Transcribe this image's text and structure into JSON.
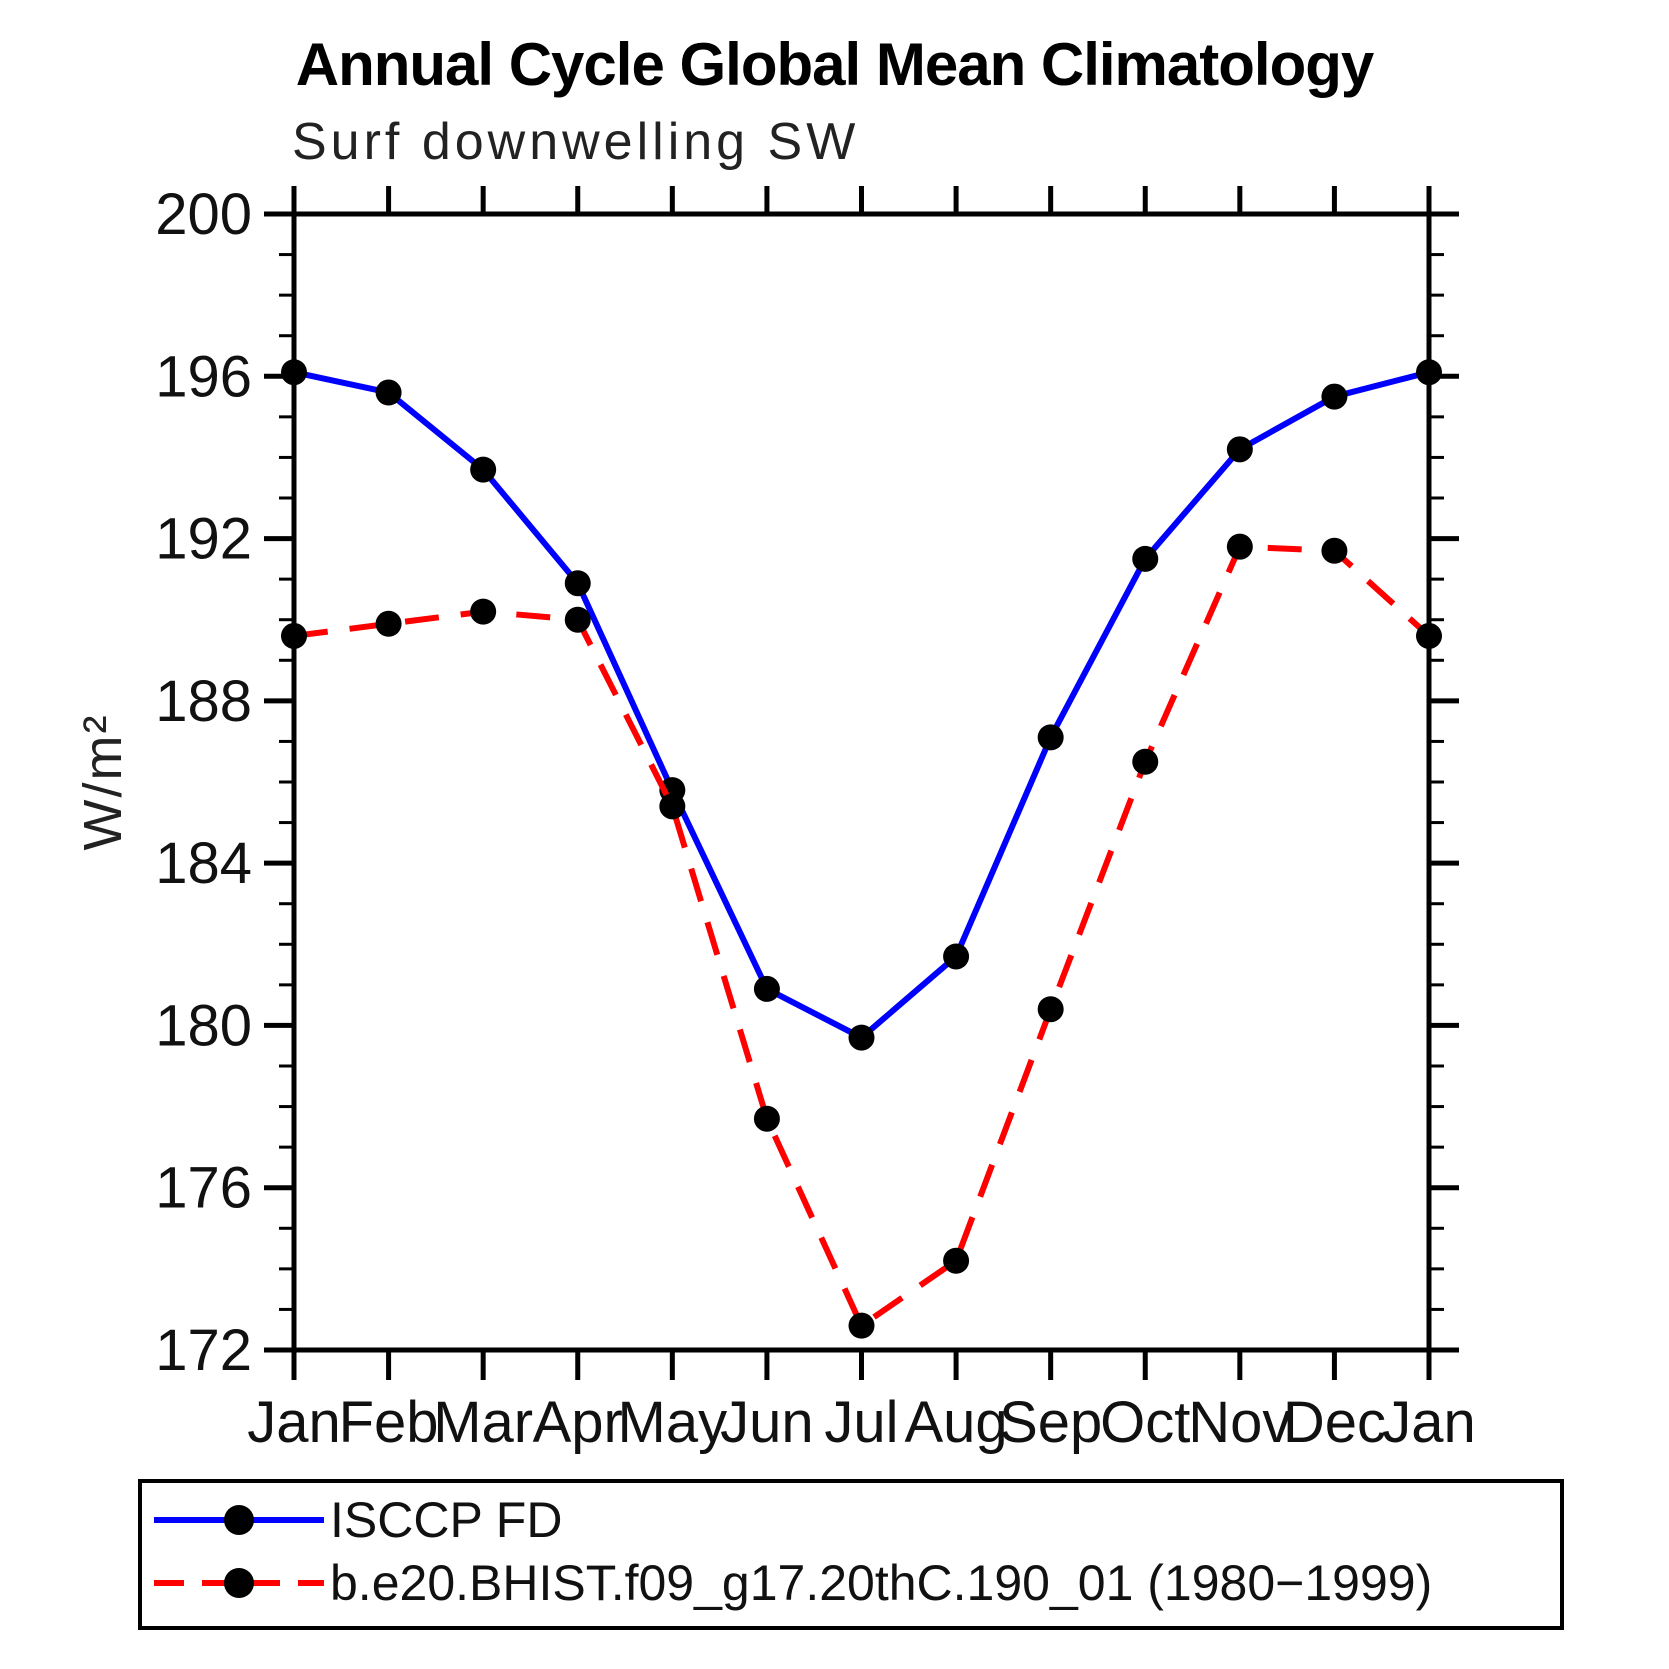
{
  "page": {
    "background": "#ffffff"
  },
  "header": {
    "title": "Annual Cycle Global Mean Climatology",
    "subtitle": "Surf downwelling SW"
  },
  "y_axis_label": "W/m²",
  "legend": {
    "items": [
      {
        "label": "ISCCP FD"
      },
      {
        "label": "b.e20.BHIST.f09_g17.20thC.190_01 (1980−1999)"
      }
    ]
  },
  "chart_data": {
    "type": "line",
    "title": "Annual Cycle Global Mean Climatology",
    "subtitle": "Surf downwelling SW",
    "ylabel": "W/m²",
    "categories": [
      "Jan",
      "Feb",
      "Mar",
      "Apr",
      "May",
      "Jun",
      "Jul",
      "Aug",
      "Sep",
      "Oct",
      "Nov",
      "Dec",
      "Jan"
    ],
    "series": [
      {
        "name": "ISCCP FD",
        "color": "#0000ff",
        "style": "solid",
        "marker": "circle",
        "marker_color": "#000000",
        "values": [
          196.1,
          195.6,
          193.7,
          190.9,
          185.8,
          180.9,
          179.7,
          181.7,
          187.1,
          191.5,
          194.2,
          195.5,
          196.1
        ]
      },
      {
        "name": "b.e20.BHIST.f09_g17.20thC.190_01 (1980−1999)",
        "color": "#ff0000",
        "style": "dashed",
        "marker": "circle",
        "marker_color": "#000000",
        "values": [
          189.6,
          189.9,
          190.2,
          190.0,
          185.4,
          177.7,
          172.6,
          174.2,
          180.4,
          186.5,
          191.8,
          191.7,
          189.6
        ]
      }
    ],
    "ylim": [
      172,
      200
    ],
    "yticks_major": [
      172,
      176,
      180,
      184,
      188,
      192,
      196,
      200
    ],
    "ytick_minor_step": 1,
    "grid": false,
    "legend_position": "bottom",
    "axis_color": "#000000"
  }
}
